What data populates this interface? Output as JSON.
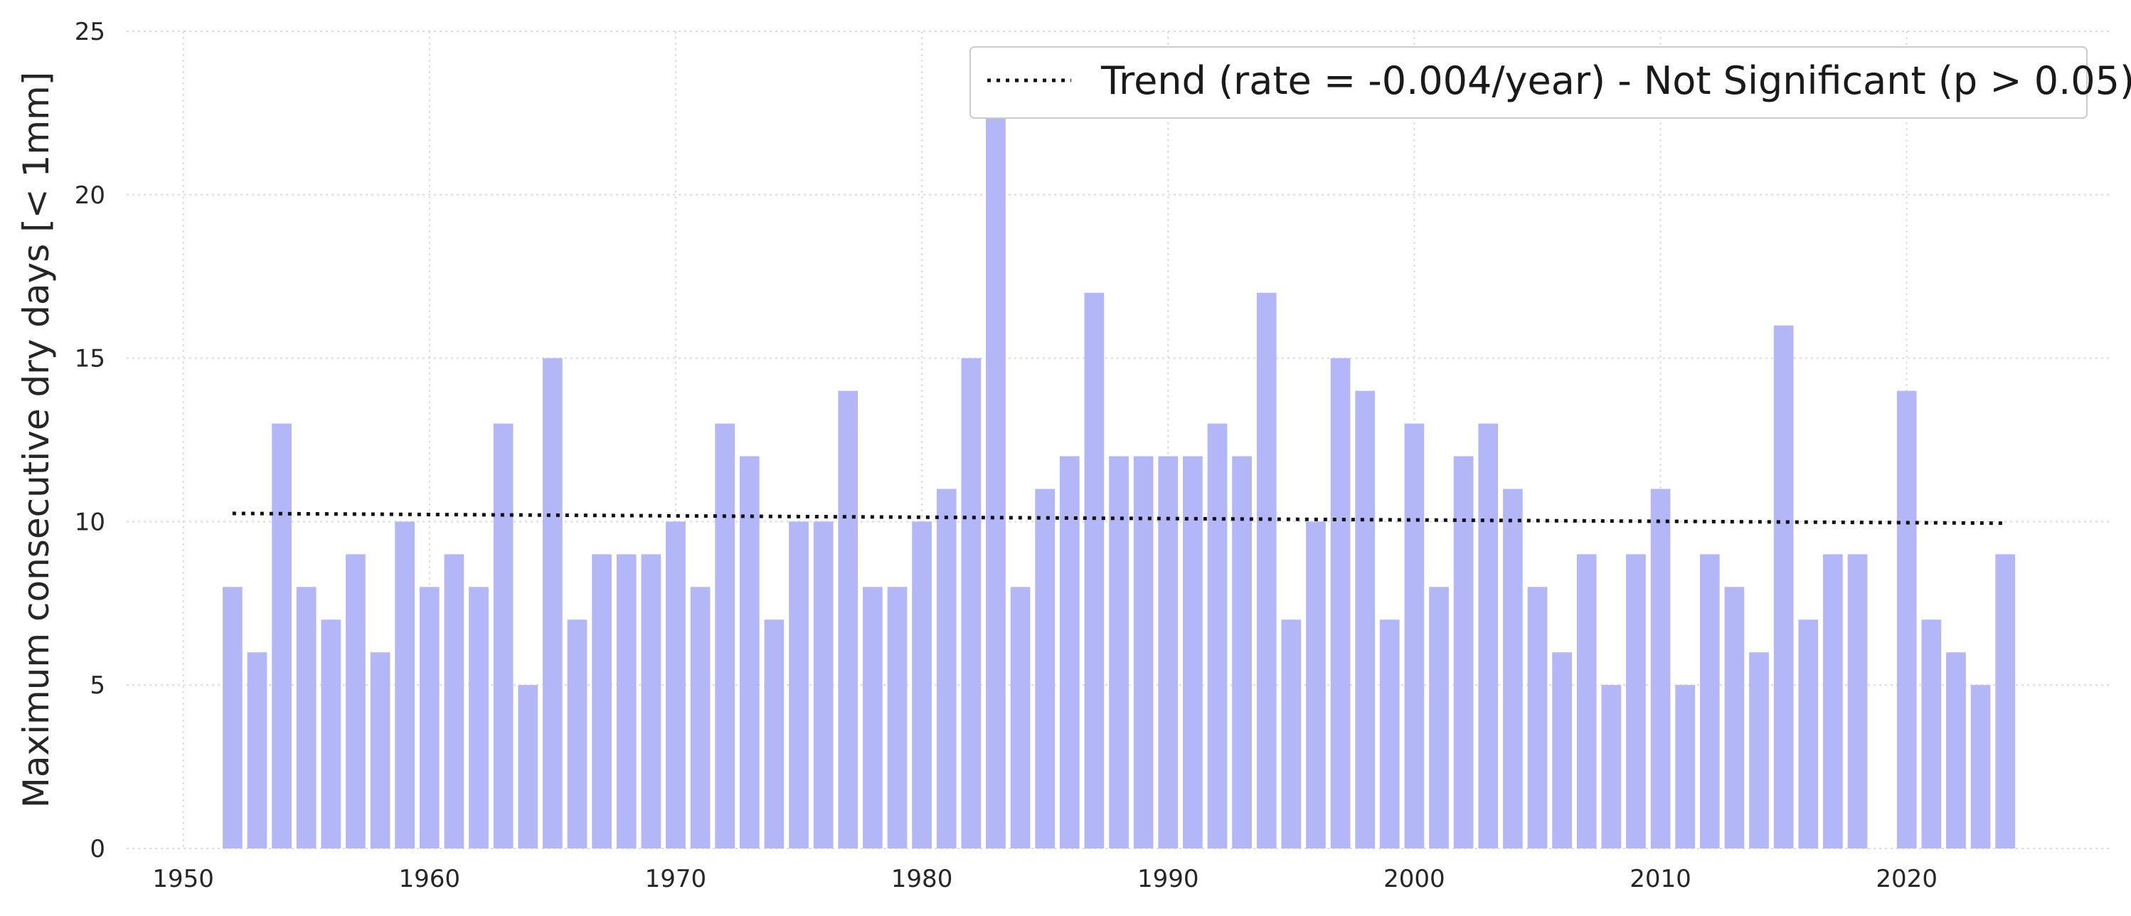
{
  "chart_data": {
    "type": "bar",
    "ylabel": "Maximum consecutive dry days [< 1mm]",
    "xlabel": "",
    "xlim": [
      1947.7,
      2028.3
    ],
    "ylim": [
      0,
      25
    ],
    "xticks": [
      1950,
      1960,
      1970,
      1980,
      1990,
      2000,
      2010,
      2020
    ],
    "yticks": [
      0,
      5,
      10,
      15,
      20,
      25
    ],
    "grid": true,
    "legend_position": "top-right",
    "bar_color": "#b3b6f7",
    "trend_color": "#111111",
    "x": [
      1952,
      1953,
      1954,
      1955,
      1956,
      1957,
      1958,
      1959,
      1960,
      1961,
      1962,
      1963,
      1964,
      1965,
      1966,
      1967,
      1968,
      1969,
      1970,
      1971,
      1972,
      1973,
      1974,
      1975,
      1976,
      1977,
      1978,
      1979,
      1980,
      1981,
      1982,
      1983,
      1984,
      1985,
      1986,
      1987,
      1988,
      1989,
      1990,
      1991,
      1992,
      1993,
      1994,
      1995,
      1996,
      1997,
      1998,
      1999,
      2000,
      2001,
      2002,
      2003,
      2004,
      2005,
      2006,
      2007,
      2008,
      2009,
      2010,
      2011,
      2012,
      2013,
      2014,
      2015,
      2016,
      2017,
      2018,
      2020,
      2021,
      2022,
      2023,
      2024
    ],
    "values": [
      8,
      6,
      13,
      8,
      7,
      9,
      6,
      10,
      8,
      9,
      8,
      13,
      5,
      15,
      7,
      9,
      9,
      9,
      10,
      8,
      13,
      12,
      7,
      10,
      10,
      14,
      8,
      8,
      10,
      11,
      15,
      24,
      8,
      11,
      12,
      17,
      12,
      12,
      12,
      12,
      13,
      12,
      17,
      7,
      10,
      15,
      14,
      7,
      13,
      8,
      12,
      13,
      11,
      8,
      6,
      9,
      5,
      9,
      11,
      5,
      9,
      8,
      6,
      16,
      7,
      9,
      9,
      14,
      7,
      6,
      5,
      9
    ],
    "trend": {
      "label": "Trend (rate = -0.004/year) - Not Significant (p > 0.05)",
      "x": [
        1952,
        2024
      ],
      "y": [
        10.25,
        9.95
      ]
    }
  }
}
